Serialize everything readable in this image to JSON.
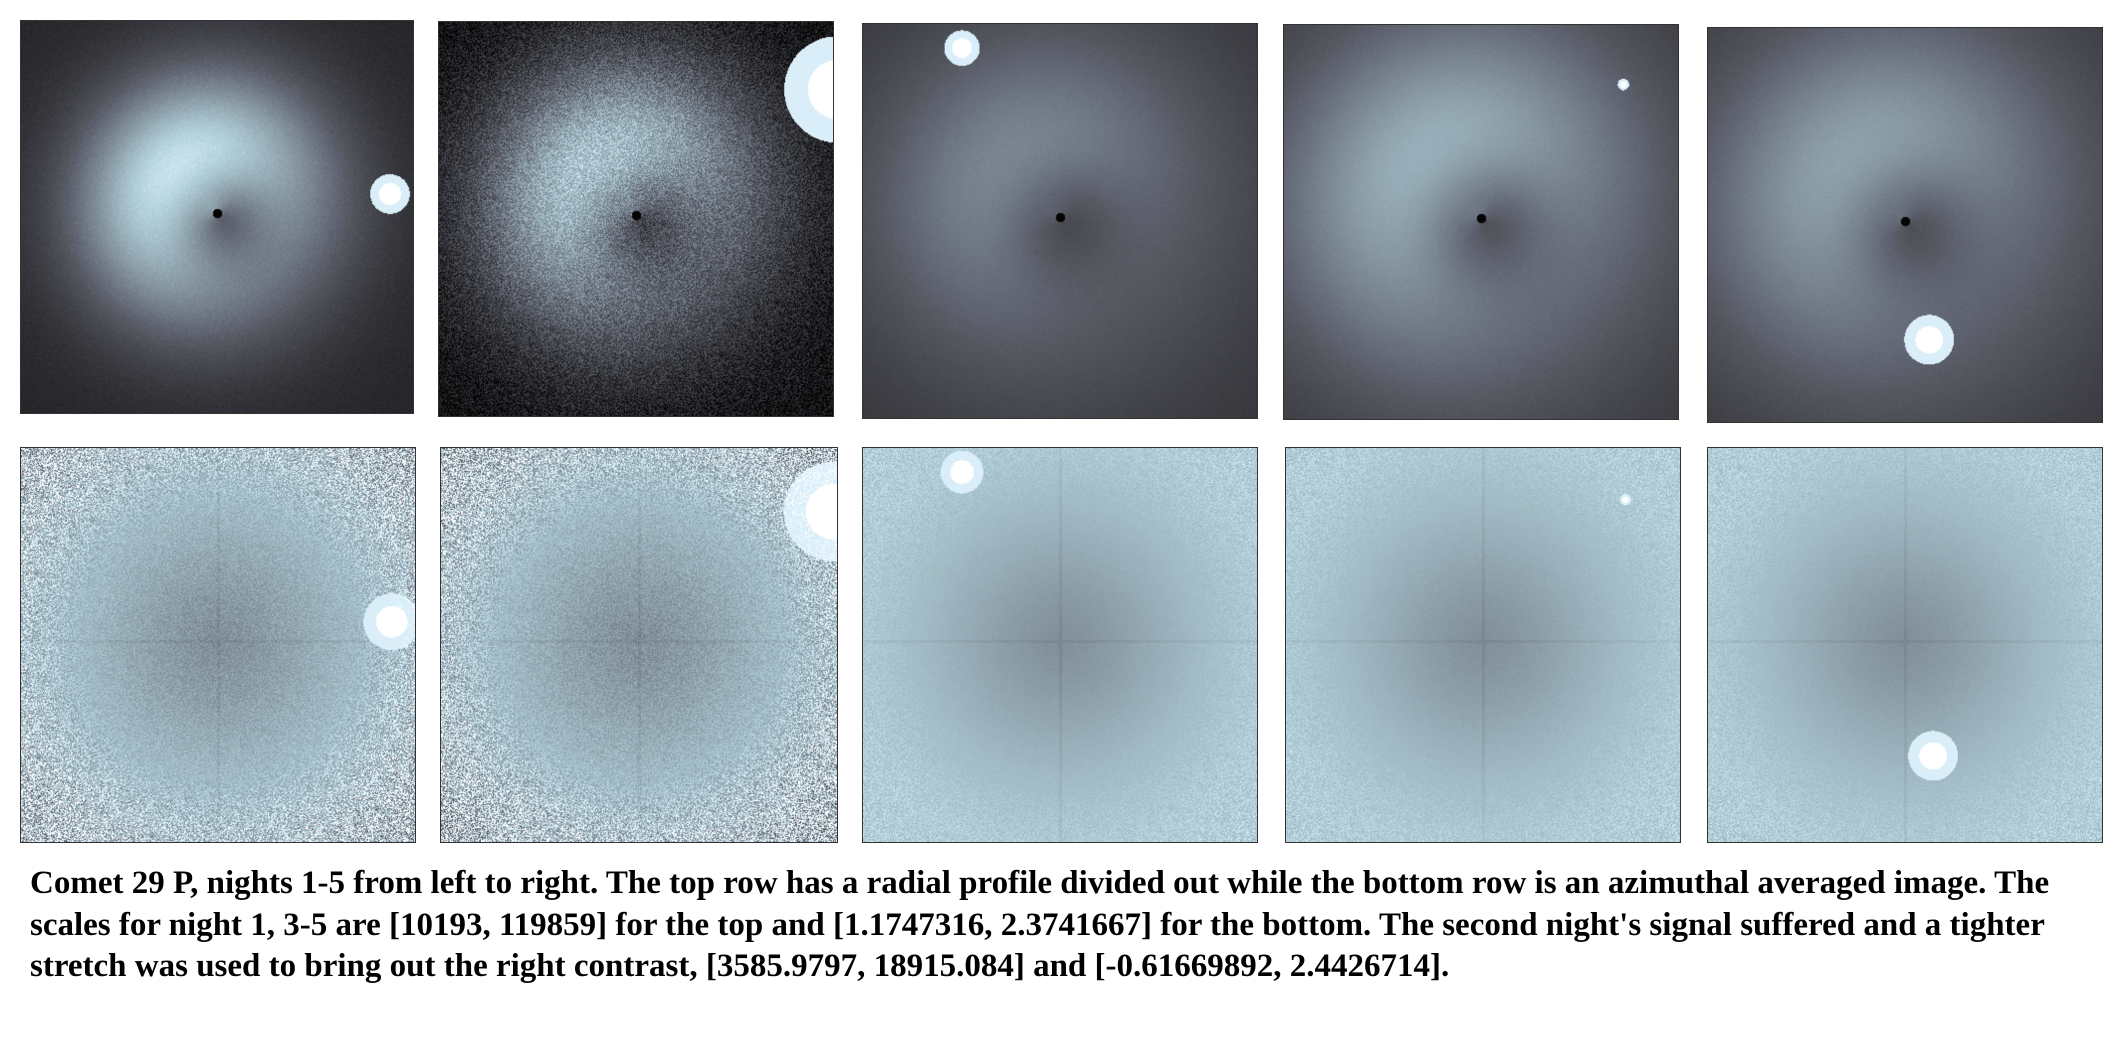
{
  "figure": {
    "caption": "Comet 29 P, nights 1-5 from left to right. The top row has a radial profile divided out while the bottom row is an azimuthal averaged image. The scales for night 1, 3-5 are [10193, 119859] for the top and [1.1747316, 2.3741667] for the bottom. The second night's signal suffered and a tighter stretch was used to bring out the right contrast, [3585.9797, 18915.084] and [-0.61669892, 2.4426714]."
  },
  "panels": {
    "top": [
      {
        "night": 1,
        "style": "ring",
        "bg": 0.16,
        "brightness": 0.95,
        "noise": 0.05,
        "ring_radius": 0.3,
        "star": [
          0.94,
          0.44,
          0.028
        ]
      },
      {
        "night": 2,
        "style": "ring",
        "bg": 0.06,
        "brightness": 0.85,
        "noise": 0.3,
        "ring_radius": 0.34,
        "star": [
          1.01,
          0.17,
          0.075
        ]
      },
      {
        "night": 3,
        "style": "halo",
        "bg": 0.22,
        "brightness": 0.55,
        "noise": 0.03,
        "ring_radius": 0.42,
        "star": [
          0.25,
          0.06,
          0.025
        ]
      },
      {
        "night": 4,
        "style": "halo",
        "bg": 0.22,
        "brightness": 0.7,
        "noise": 0.03,
        "ring_radius": 0.45,
        "star": [
          0.86,
          0.15,
          0.008
        ]
      },
      {
        "night": 5,
        "style": "halo",
        "bg": 0.22,
        "brightness": 0.65,
        "noise": 0.03,
        "ring_radius": 0.45,
        "star": [
          0.56,
          0.79,
          0.035
        ]
      }
    ],
    "bottom": [
      {
        "night": 1,
        "style": "flat",
        "noise": 0.55,
        "star": [
          0.94,
          0.44,
          0.04
        ]
      },
      {
        "night": 2,
        "style": "flat",
        "noise": 0.6,
        "star": [
          0.99,
          0.16,
          0.07
        ]
      },
      {
        "night": 3,
        "style": "flat",
        "noise": 0.12,
        "star": [
          0.25,
          0.06,
          0.03
        ]
      },
      {
        "night": 4,
        "style": "flat",
        "noise": 0.12,
        "star": [
          0.86,
          0.13,
          0.008
        ]
      },
      {
        "night": 5,
        "style": "flat",
        "noise": 0.12,
        "star": [
          0.57,
          0.78,
          0.035
        ]
      }
    ]
  }
}
